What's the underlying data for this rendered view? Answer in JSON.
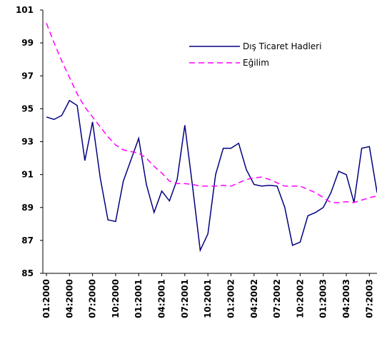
{
  "chart_data": {
    "type": "line",
    "categories": [
      "01:2000",
      null,
      null,
      "04:2000",
      null,
      null,
      "07:2000",
      null,
      null,
      "10:2000",
      null,
      null,
      "01:2001",
      null,
      null,
      "04:2001",
      null,
      null,
      "07:2001",
      null,
      null,
      "10:2001",
      null,
      null,
      "01:2002",
      null,
      null,
      "04:2002",
      null,
      null,
      "07:2002",
      null,
      null,
      "10:2002",
      null,
      null,
      "01:2003",
      null,
      null,
      "04:2003",
      null,
      null,
      "07:2003",
      null
    ],
    "series": [
      {
        "name": "Dış Ticaret Hadleri",
        "color": "#000080",
        "dash": false,
        "values": [
          94.5,
          94.35,
          94.6,
          95.5,
          95.2,
          91.85,
          94.2,
          90.8,
          88.25,
          88.15,
          90.6,
          91.9,
          93.2,
          90.4,
          88.7,
          90,
          89.4,
          90.7,
          94,
          90.3,
          86.4,
          87.4,
          91,
          92.6,
          92.6,
          92.9,
          91.3,
          90.4,
          90.3,
          90.35,
          90.3,
          89,
          86.7,
          86.9,
          88.5,
          88.7,
          89,
          89.9,
          91.2,
          91,
          89.3,
          92.6,
          92.7,
          89.9
        ]
      },
      {
        "name": "Eğilim",
        "color": "#ff00ff",
        "dash": true,
        "values": [
          100.2,
          99,
          97.9,
          96.9,
          95.9,
          95.1,
          94.5,
          93.9,
          93.3,
          92.8,
          92.5,
          92.4,
          92.3,
          92,
          91.5,
          91.1,
          90.6,
          90.45,
          90.45,
          90.4,
          90.3,
          90.3,
          90.3,
          90.35,
          90.3,
          90.5,
          90.7,
          90.8,
          90.85,
          90.7,
          90.5,
          90.3,
          90.3,
          90.3,
          90.1,
          89.9,
          89.6,
          89.3,
          89.3,
          89.35,
          89.3,
          89.45,
          89.6,
          89.7
        ]
      }
    ],
    "ylim": [
      85,
      101
    ],
    "yticks": [
      85,
      87,
      89,
      91,
      93,
      95,
      97,
      99,
      101
    ],
    "grid": false,
    "legend": "top-right"
  }
}
